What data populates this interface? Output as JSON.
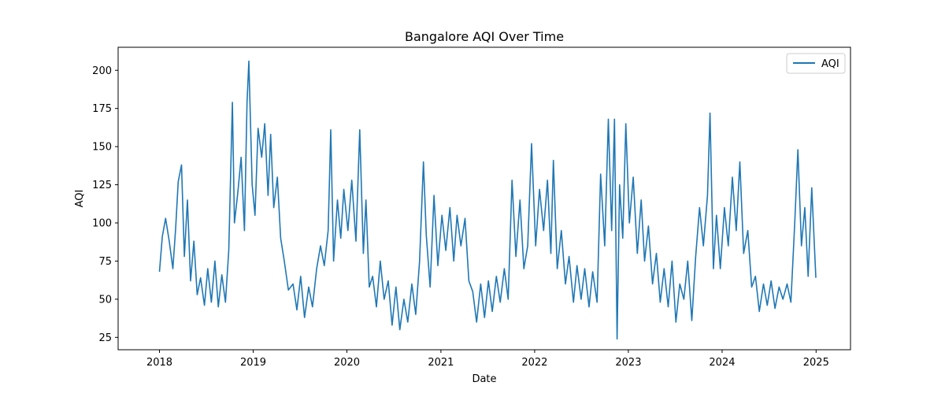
{
  "chart_data": {
    "type": "line",
    "title": "Bangalore AQI Over Time",
    "xlabel": "Date",
    "ylabel": "AQI",
    "xlim": [
      "2017-07-24",
      "2025-05-15"
    ],
    "ylim": [
      16.9,
      215.1
    ],
    "x_ticks": [
      "2018",
      "2019",
      "2020",
      "2021",
      "2022",
      "2023",
      "2024",
      "2025"
    ],
    "y_ticks": [
      25,
      50,
      75,
      100,
      125,
      150,
      175,
      200
    ],
    "grid": false,
    "legend_position": "top-right",
    "series": [
      {
        "name": "AQI",
        "color": "#1f77b4",
        "points": [
          [
            "2018-01-01",
            68
          ],
          [
            "2018-01-12",
            91
          ],
          [
            "2018-01-25",
            103
          ],
          [
            "2018-02-08",
            88
          ],
          [
            "2018-02-22",
            70
          ],
          [
            "2018-03-05",
            96
          ],
          [
            "2018-03-15",
            127
          ],
          [
            "2018-03-28",
            138
          ],
          [
            "2018-04-08",
            78
          ],
          [
            "2018-04-20",
            115
          ],
          [
            "2018-05-02",
            62
          ],
          [
            "2018-05-15",
            88
          ],
          [
            "2018-05-28",
            53
          ],
          [
            "2018-06-10",
            64
          ],
          [
            "2018-06-25",
            46
          ],
          [
            "2018-07-08",
            70
          ],
          [
            "2018-07-22",
            48
          ],
          [
            "2018-08-05",
            75
          ],
          [
            "2018-08-18",
            45
          ],
          [
            "2018-09-01",
            66
          ],
          [
            "2018-09-15",
            48
          ],
          [
            "2018-09-28",
            82
          ],
          [
            "2018-10-12",
            179
          ],
          [
            "2018-10-20",
            100
          ],
          [
            "2018-11-02",
            120
          ],
          [
            "2018-11-15",
            143
          ],
          [
            "2018-11-28",
            95
          ],
          [
            "2018-12-08",
            179
          ],
          [
            "2018-12-15",
            206
          ],
          [
            "2018-12-28",
            125
          ],
          [
            "2019-01-08",
            105
          ],
          [
            "2019-01-20",
            162
          ],
          [
            "2019-02-03",
            143
          ],
          [
            "2019-02-15",
            165
          ],
          [
            "2019-02-28",
            118
          ],
          [
            "2019-03-10",
            158
          ],
          [
            "2019-03-22",
            110
          ],
          [
            "2019-04-05",
            130
          ],
          [
            "2019-04-18",
            90
          ],
          [
            "2019-05-02",
            75
          ],
          [
            "2019-05-18",
            56
          ],
          [
            "2019-06-05",
            60
          ],
          [
            "2019-06-20",
            43
          ],
          [
            "2019-07-05",
            65
          ],
          [
            "2019-07-20",
            38
          ],
          [
            "2019-08-05",
            58
          ],
          [
            "2019-08-20",
            45
          ],
          [
            "2019-09-05",
            70
          ],
          [
            "2019-09-20",
            85
          ],
          [
            "2019-10-05",
            72
          ],
          [
            "2019-10-20",
            95
          ],
          [
            "2019-10-30",
            161
          ],
          [
            "2019-11-10",
            75
          ],
          [
            "2019-11-25",
            115
          ],
          [
            "2019-12-08",
            90
          ],
          [
            "2019-12-20",
            122
          ],
          [
            "2020-01-05",
            95
          ],
          [
            "2020-01-20",
            128
          ],
          [
            "2020-02-05",
            88
          ],
          [
            "2020-02-20",
            161
          ],
          [
            "2020-03-05",
            80
          ],
          [
            "2020-03-15",
            115
          ],
          [
            "2020-03-28",
            58
          ],
          [
            "2020-04-10",
            65
          ],
          [
            "2020-04-25",
            45
          ],
          [
            "2020-05-10",
            75
          ],
          [
            "2020-05-25",
            50
          ],
          [
            "2020-06-10",
            62
          ],
          [
            "2020-06-25",
            33
          ],
          [
            "2020-07-10",
            58
          ],
          [
            "2020-07-25",
            30
          ],
          [
            "2020-08-10",
            50
          ],
          [
            "2020-08-25",
            35
          ],
          [
            "2020-09-10",
            60
          ],
          [
            "2020-09-25",
            40
          ],
          [
            "2020-10-10",
            75
          ],
          [
            "2020-10-25",
            140
          ],
          [
            "2020-11-05",
            92
          ],
          [
            "2020-11-20",
            58
          ],
          [
            "2020-12-05",
            118
          ],
          [
            "2020-12-20",
            72
          ],
          [
            "2021-01-05",
            105
          ],
          [
            "2021-01-20",
            82
          ],
          [
            "2021-02-05",
            110
          ],
          [
            "2021-02-20",
            75
          ],
          [
            "2021-03-05",
            105
          ],
          [
            "2021-03-20",
            85
          ],
          [
            "2021-04-05",
            103
          ],
          [
            "2021-04-20",
            62
          ],
          [
            "2021-05-05",
            55
          ],
          [
            "2021-05-20",
            35
          ],
          [
            "2021-06-05",
            60
          ],
          [
            "2021-06-20",
            38
          ],
          [
            "2021-07-05",
            62
          ],
          [
            "2021-07-20",
            42
          ],
          [
            "2021-08-05",
            65
          ],
          [
            "2021-08-20",
            48
          ],
          [
            "2021-09-05",
            70
          ],
          [
            "2021-09-20",
            50
          ],
          [
            "2021-10-05",
            128
          ],
          [
            "2021-10-20",
            78
          ],
          [
            "2021-11-05",
            115
          ],
          [
            "2021-11-20",
            70
          ],
          [
            "2021-12-05",
            85
          ],
          [
            "2021-12-20",
            152
          ],
          [
            "2022-01-05",
            85
          ],
          [
            "2022-01-20",
            122
          ],
          [
            "2022-02-05",
            95
          ],
          [
            "2022-02-20",
            128
          ],
          [
            "2022-03-05",
            80
          ],
          [
            "2022-03-15",
            141
          ],
          [
            "2022-03-30",
            70
          ],
          [
            "2022-04-15",
            95
          ],
          [
            "2022-05-01",
            60
          ],
          [
            "2022-05-15",
            78
          ],
          [
            "2022-06-01",
            48
          ],
          [
            "2022-06-15",
            72
          ],
          [
            "2022-07-01",
            50
          ],
          [
            "2022-07-15",
            70
          ],
          [
            "2022-08-01",
            45
          ],
          [
            "2022-08-15",
            68
          ],
          [
            "2022-09-01",
            48
          ],
          [
            "2022-09-15",
            132
          ],
          [
            "2022-10-01",
            85
          ],
          [
            "2022-10-15",
            168
          ],
          [
            "2022-10-28",
            95
          ],
          [
            "2022-11-08",
            168
          ],
          [
            "2022-11-18",
            24
          ],
          [
            "2022-11-28",
            125
          ],
          [
            "2022-12-10",
            90
          ],
          [
            "2022-12-22",
            165
          ],
          [
            "2023-01-05",
            100
          ],
          [
            "2023-01-20",
            130
          ],
          [
            "2023-02-05",
            80
          ],
          [
            "2023-02-20",
            115
          ],
          [
            "2023-03-05",
            75
          ],
          [
            "2023-03-20",
            98
          ],
          [
            "2023-04-05",
            60
          ],
          [
            "2023-04-20",
            80
          ],
          [
            "2023-05-05",
            48
          ],
          [
            "2023-05-20",
            70
          ],
          [
            "2023-06-05",
            45
          ],
          [
            "2023-06-20",
            75
          ],
          [
            "2023-07-05",
            35
          ],
          [
            "2023-07-20",
            60
          ],
          [
            "2023-08-05",
            50
          ],
          [
            "2023-08-20",
            75
          ],
          [
            "2023-09-05",
            36
          ],
          [
            "2023-09-20",
            78
          ],
          [
            "2023-10-05",
            110
          ],
          [
            "2023-10-20",
            85
          ],
          [
            "2023-11-05",
            118
          ],
          [
            "2023-11-15",
            172
          ],
          [
            "2023-11-28",
            70
          ],
          [
            "2023-12-10",
            105
          ],
          [
            "2023-12-25",
            70
          ],
          [
            "2024-01-10",
            110
          ],
          [
            "2024-01-25",
            85
          ],
          [
            "2024-02-10",
            130
          ],
          [
            "2024-02-25",
            95
          ],
          [
            "2024-03-10",
            140
          ],
          [
            "2024-03-25",
            80
          ],
          [
            "2024-04-10",
            95
          ],
          [
            "2024-04-25",
            58
          ],
          [
            "2024-05-10",
            65
          ],
          [
            "2024-05-25",
            42
          ],
          [
            "2024-06-10",
            60
          ],
          [
            "2024-06-25",
            46
          ],
          [
            "2024-07-10",
            62
          ],
          [
            "2024-07-25",
            44
          ],
          [
            "2024-08-10",
            58
          ],
          [
            "2024-08-25",
            50
          ],
          [
            "2024-09-10",
            60
          ],
          [
            "2024-09-25",
            48
          ],
          [
            "2024-10-10",
            100
          ],
          [
            "2024-10-22",
            148
          ],
          [
            "2024-11-05",
            85
          ],
          [
            "2024-11-18",
            110
          ],
          [
            "2024-12-01",
            65
          ],
          [
            "2024-12-15",
            123
          ],
          [
            "2024-12-31",
            64
          ]
        ]
      }
    ]
  }
}
